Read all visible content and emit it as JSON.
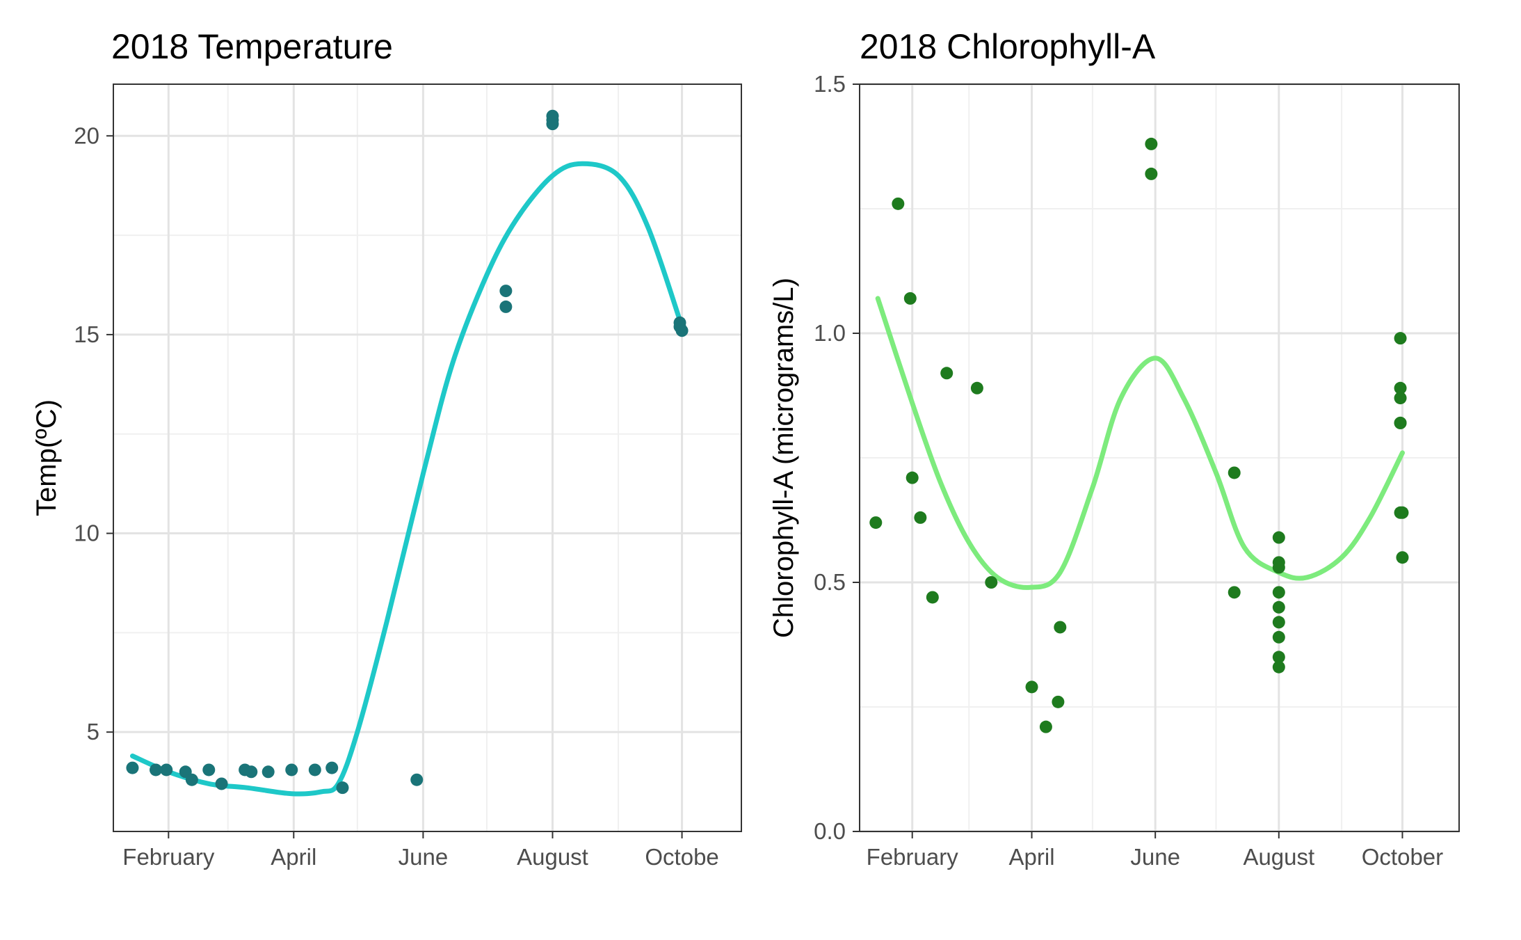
{
  "chart_data": [
    {
      "type": "scatter",
      "title": "2018 Temperature",
      "xlabel": "",
      "ylabel": "Temp(ºC)",
      "x_ticks": [
        "February",
        "April",
        "June",
        "August",
        "Octobe"
      ],
      "y_ticks": [
        "5",
        "10",
        "15",
        "20"
      ],
      "xlim": [
        "2018-01-06",
        "2018-10-29"
      ],
      "ylim": [
        2.5,
        21.3
      ],
      "grid": true,
      "legend": "none",
      "colors": {
        "points": "#1a7478",
        "smooth": "#1ec8c8"
      },
      "series": [
        {
          "kind": "points",
          "x": [
            "2018-01-15",
            "2018-01-26",
            "2018-01-31",
            "2018-02-09",
            "2018-02-12",
            "2018-02-20",
            "2018-02-26",
            "2018-03-09",
            "2018-03-12",
            "2018-03-20",
            "2018-03-31",
            "2018-04-11",
            "2018-04-19",
            "2018-04-24",
            "2018-05-29",
            "2018-07-10",
            "2018-07-10",
            "2018-08-01",
            "2018-08-01",
            "2018-08-01",
            "2018-09-30",
            "2018-09-30",
            "2018-10-01"
          ],
          "y": [
            4.1,
            4.05,
            4.05,
            4.0,
            3.8,
            4.05,
            3.7,
            4.05,
            4.0,
            4.0,
            4.05,
            4.05,
            4.1,
            3.6,
            3.8,
            16.1,
            15.7,
            20.5,
            20.4,
            20.3,
            15.3,
            15.2,
            15.1
          ]
        },
        {
          "kind": "smooth",
          "x": [
            "2018-01-15",
            "2018-02-01",
            "2018-02-20",
            "2018-03-10",
            "2018-03-31",
            "2018-04-14",
            "2018-04-22",
            "2018-05-01",
            "2018-05-15",
            "2018-06-01",
            "2018-06-15",
            "2018-07-01",
            "2018-07-15",
            "2018-08-01",
            "2018-08-15",
            "2018-09-01",
            "2018-09-15",
            "2018-10-01"
          ],
          "y": [
            4.4,
            4.0,
            3.7,
            3.6,
            3.45,
            3.5,
            3.7,
            5.0,
            7.8,
            11.5,
            14.3,
            16.5,
            17.9,
            19.0,
            19.3,
            19.0,
            17.7,
            15.2
          ]
        }
      ]
    },
    {
      "type": "scatter",
      "title": "2018 Chlorophyll-A",
      "xlabel": "",
      "ylabel": "Chlorophyll-A (micrograms/L)",
      "x_ticks": [
        "February",
        "April",
        "June",
        "August",
        "October"
      ],
      "y_ticks": [
        "0.0",
        "0.5",
        "1.0",
        "1.5"
      ],
      "xlim": [
        "2018-01-06",
        "2018-10-29"
      ],
      "ylim": [
        0,
        1.5
      ],
      "grid": true,
      "legend": "none",
      "colors": {
        "points": "#1e7b1e",
        "smooth": "#7deb7d"
      },
      "series": [
        {
          "kind": "points",
          "x": [
            "2018-01-14",
            "2018-01-25",
            "2018-01-31",
            "2018-02-01",
            "2018-02-05",
            "2018-02-11",
            "2018-02-18",
            "2018-03-05",
            "2018-03-12",
            "2018-04-01",
            "2018-04-08",
            "2018-04-14",
            "2018-04-15",
            "2018-05-30",
            "2018-05-30",
            "2018-07-10",
            "2018-07-10",
            "2018-08-01",
            "2018-08-01",
            "2018-08-01",
            "2018-08-01",
            "2018-08-01",
            "2018-08-01",
            "2018-08-01",
            "2018-08-01",
            "2018-08-01",
            "2018-09-30",
            "2018-09-30",
            "2018-09-30",
            "2018-09-30",
            "2018-09-30",
            "2018-09-30",
            "2018-10-01",
            "2018-10-01"
          ],
          "y": [
            0.62,
            1.26,
            1.07,
            0.71,
            0.63,
            0.47,
            0.92,
            0.89,
            0.5,
            0.29,
            0.21,
            0.26,
            0.41,
            1.38,
            1.32,
            0.72,
            0.48,
            0.59,
            0.54,
            0.53,
            0.48,
            0.45,
            0.42,
            0.39,
            0.35,
            0.33,
            0.99,
            0.89,
            0.87,
            0.82,
            0.82,
            0.64,
            0.64,
            0.55
          ]
        },
        {
          "kind": "smooth",
          "x": [
            "2018-01-15",
            "2018-02-01",
            "2018-02-15",
            "2018-03-01",
            "2018-03-15",
            "2018-03-31",
            "2018-04-15",
            "2018-05-01",
            "2018-05-15",
            "2018-06-01",
            "2018-06-15",
            "2018-07-01",
            "2018-07-15",
            "2018-08-01",
            "2018-08-15",
            "2018-09-01",
            "2018-09-15",
            "2018-10-01"
          ],
          "y": [
            1.07,
            0.86,
            0.7,
            0.58,
            0.51,
            0.49,
            0.52,
            0.69,
            0.87,
            0.95,
            0.87,
            0.72,
            0.57,
            0.52,
            0.51,
            0.55,
            0.63,
            0.76
          ]
        }
      ]
    }
  ]
}
